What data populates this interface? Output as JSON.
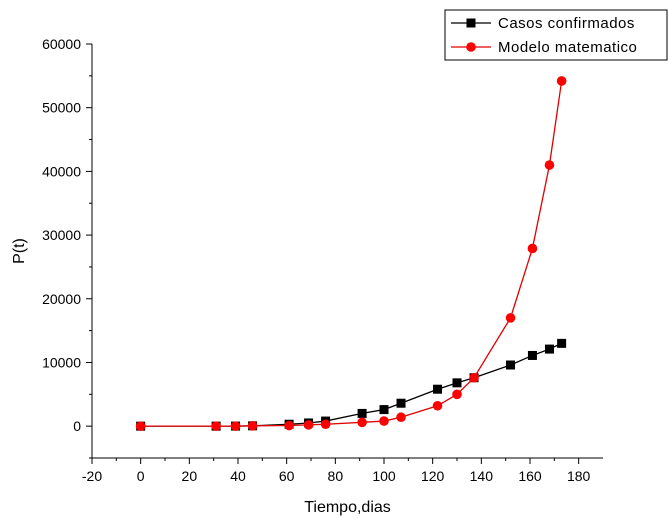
{
  "chart_data": {
    "type": "line",
    "title": "",
    "xlabel": "Tiempo,dias",
    "ylabel": "P(t)",
    "xlim": [
      -20,
      190
    ],
    "ylim": [
      -5000,
      60000
    ],
    "xticks": [
      -20,
      0,
      20,
      40,
      60,
      80,
      100,
      120,
      140,
      160,
      180
    ],
    "yticks": [
      0,
      10000,
      20000,
      30000,
      40000,
      50000,
      60000
    ],
    "xtick_labels": [
      "-20",
      "0",
      "20",
      "40",
      "60",
      "80",
      "100",
      "120",
      "140",
      "160",
      "180"
    ],
    "ytick_labels": [
      "0",
      "10000",
      "20000",
      "30000",
      "40000",
      "50000",
      "60000"
    ],
    "grid": false,
    "legend_position": "top-right",
    "series": [
      {
        "name": "Casos confirmados",
        "color": "#000000",
        "line_color": "#000000",
        "marker": "square",
        "x": [
          0,
          31,
          39,
          46,
          61,
          69,
          76,
          91,
          100,
          107,
          122,
          130,
          137,
          152,
          161,
          168,
          173
        ],
        "y": [
          0,
          0,
          10,
          50,
          300,
          500,
          800,
          2000,
          2600,
          3600,
          5800,
          6800,
          7600,
          9600,
          11100,
          12100,
          13000
        ]
      },
      {
        "name": "Modelo matematico",
        "color": "#ff0000",
        "line_color": "#e00000",
        "marker": "circle",
        "x": [
          0,
          31,
          39,
          46,
          61,
          69,
          76,
          91,
          100,
          107,
          122,
          130,
          137,
          152,
          161,
          168,
          173
        ],
        "y": [
          0,
          0,
          0,
          50,
          100,
          200,
          300,
          600,
          800,
          1400,
          3200,
          5000,
          7600,
          17000,
          27900,
          41000,
          54200
        ]
      }
    ]
  }
}
